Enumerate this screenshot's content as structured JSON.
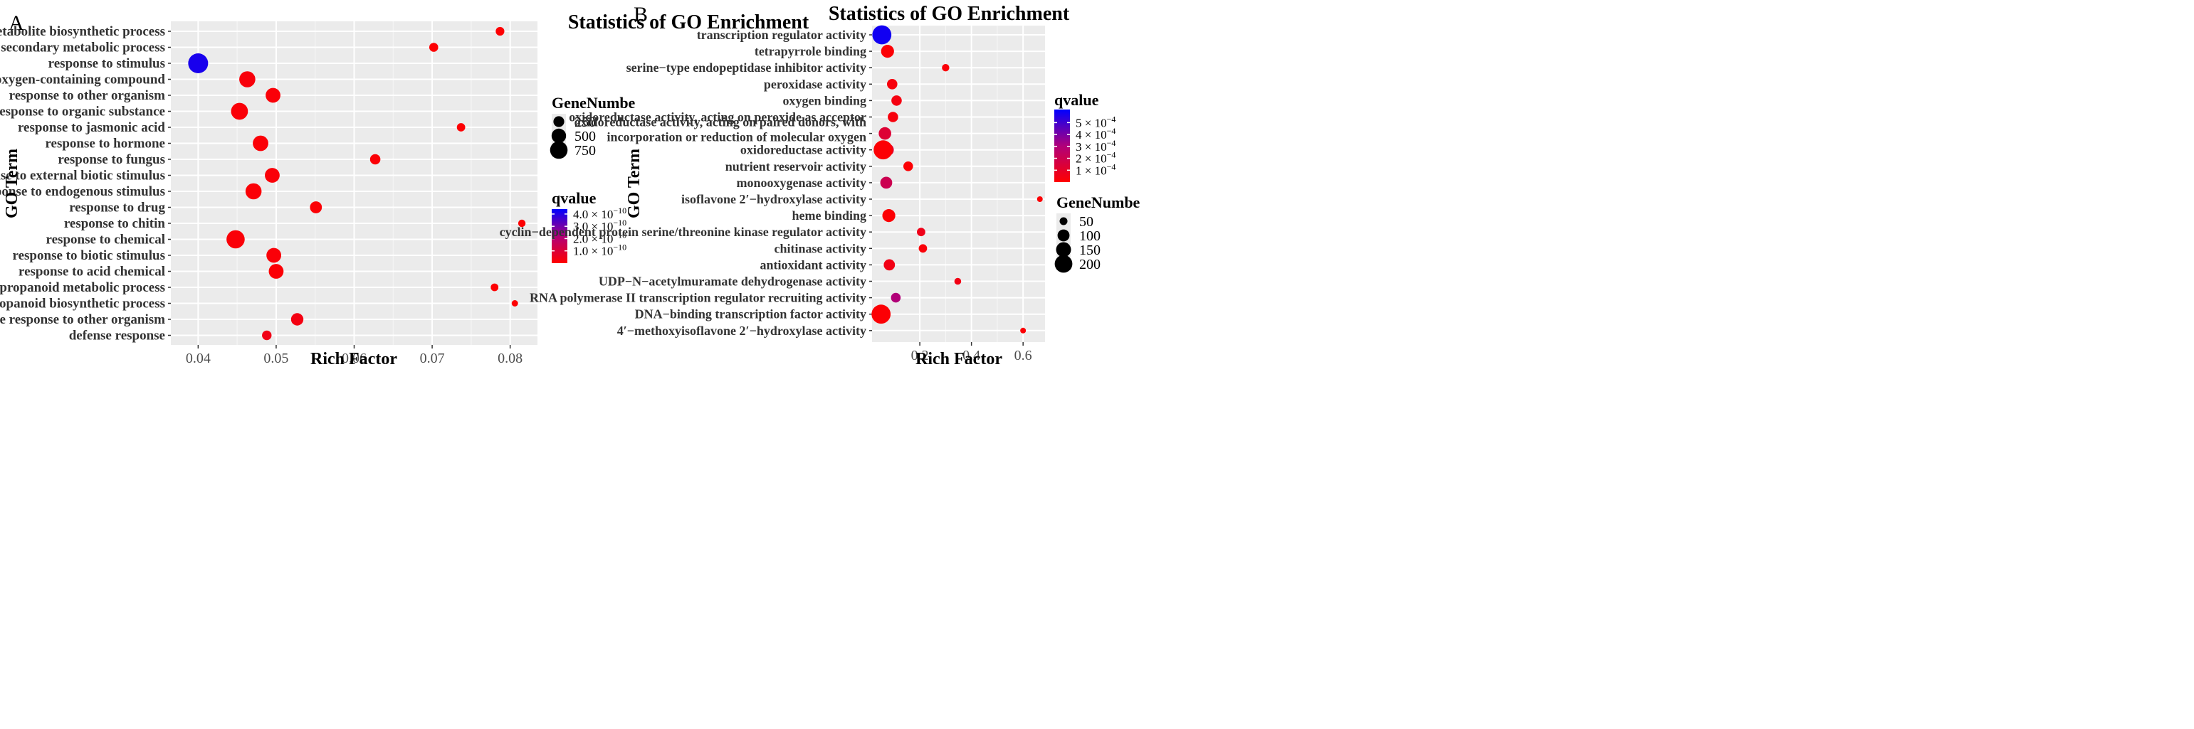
{
  "chart_data": [
    {
      "panel_label": "A",
      "type": "scatter",
      "title": "Statistics of GO Enrichment",
      "xlabel": "Rich Factor",
      "ylabel": "GO Term",
      "xlim": [
        0.0365,
        0.0835
      ],
      "xticks": [
        0.04,
        0.05,
        0.06,
        0.07,
        0.08
      ],
      "xtick_labels": [
        "0.04",
        "0.05",
        "0.06",
        "0.07",
        "0.08"
      ],
      "grid": true,
      "points": [
        {
          "term": "secondary metabolite biosynthetic process",
          "x": 0.0787,
          "size": 150,
          "q": 0.05
        },
        {
          "term": "secondary metabolic process",
          "x": 0.0702,
          "size": 160,
          "q": 0.05
        },
        {
          "term": "response to stimulus",
          "x": 0.04,
          "size": 1000,
          "q": 4.1
        },
        {
          "term": "response to oxygen-containing compound",
          "x": 0.0463,
          "size": 620,
          "q": 0.2
        },
        {
          "term": "response to other organism",
          "x": 0.0496,
          "size": 520,
          "q": 0.15
        },
        {
          "term": "response to organic substance",
          "x": 0.0453,
          "size": 700,
          "q": 0.15
        },
        {
          "term": "response to jasmonic acid",
          "x": 0.0737,
          "size": 140,
          "q": 0.05
        },
        {
          "term": "response to hormone",
          "x": 0.048,
          "size": 580,
          "q": 0.1
        },
        {
          "term": "response to fungus",
          "x": 0.0627,
          "size": 230,
          "q": 0.1
        },
        {
          "term": "response to external biotic stimulus",
          "x": 0.0495,
          "size": 520,
          "q": 0.15
        },
        {
          "term": "response to endogenous stimulus",
          "x": 0.0471,
          "size": 630,
          "q": 0.1
        },
        {
          "term": "response to drug",
          "x": 0.0551,
          "size": 320,
          "q": 0.1
        },
        {
          "term": "response to chitin",
          "x": 0.0815,
          "size": 100,
          "q": 0.05
        },
        {
          "term": "response to chemical",
          "x": 0.0448,
          "size": 820,
          "q": 0.15
        },
        {
          "term": "response to biotic stimulus",
          "x": 0.0497,
          "size": 520,
          "q": 0.15
        },
        {
          "term": "response to acid chemical",
          "x": 0.05,
          "size": 520,
          "q": 0.1
        },
        {
          "term": "phenylpropanoid metabolic process",
          "x": 0.078,
          "size": 110,
          "q": 0.05
        },
        {
          "term": "phenylpropanoid biosynthetic process",
          "x": 0.0806,
          "size": 70,
          "q": 0.05
        },
        {
          "term": "defense response to other organism",
          "x": 0.0527,
          "size": 350,
          "q": 0.3
        },
        {
          "term": "defense response",
          "x": 0.0488,
          "size": 190,
          "q": 0.4
        }
      ],
      "size_legend": {
        "title": "GeneNumbe",
        "values": [
          250,
          500,
          750
        ],
        "labels": [
          "250",
          "500",
          "750"
        ]
      },
      "color_legend": {
        "title": "qvalue",
        "max": 4.4,
        "ticks": [
          1.0,
          2.0,
          3.0,
          4.0
        ],
        "labels": [
          "1.0 × 10",
          "2.0 × 10",
          "3.0 × 10",
          "4.0 × 10"
        ],
        "exponent": "−10"
      },
      "colors": {
        "low": "#ff0000",
        "high": "#0000ff"
      }
    },
    {
      "panel_label": "B",
      "type": "scatter",
      "title": "Statistics of GO Enrichment",
      "xlabel": "Rich Factor",
      "ylabel": "GO Term",
      "xlim": [
        0.015,
        0.685
      ],
      "xticks": [
        0.2,
        0.4,
        0.6
      ],
      "xtick_labels": [
        "0.2",
        "0.4",
        "0.6"
      ],
      "grid": true,
      "points": [
        {
          "term": "transcription regulator activity",
          "x": 0.053,
          "size": 230,
          "q": 5.8
        },
        {
          "term": "tetrapyrrole binding",
          "x": 0.075,
          "size": 115,
          "q": 0.1
        },
        {
          "term": "serine-type endopeptidase inhibitor activity",
          "x": 0.3,
          "size": 45,
          "q": 0.2
        },
        {
          "term": "peroxidase activity",
          "x": 0.093,
          "size": 80,
          "q": 0.3
        },
        {
          "term": "oxygen binding",
          "x": 0.11,
          "size": 80,
          "q": 0.4
        },
        {
          "term": "oxidoreductase activity, acting on peroxide as acceptor",
          "x": 0.096,
          "size": 80,
          "q": 0.3
        },
        {
          "term": "oxidoreductase activity, acting on paired donors, with incorporation or reduction of molecular oxygen",
          "term_lines": [
            "oxidoreductase activity, acting on paired donors, with",
            "incorporation or reduction of molecular oxygen"
          ],
          "x": 0.065,
          "size": 110,
          "q": 1.3
        },
        {
          "term": "oxidoreductase activity",
          "x": 0.075,
          "size": 110,
          "q": 1.3
        },
        {
          "term": "oxidoreductase activity",
          "x": 0.058,
          "size": 230,
          "q": 0.1
        },
        {
          "term": "nutrient reservoir activity",
          "x": 0.155,
          "size": 70,
          "q": 0.1
        },
        {
          "term": "monooxygenase activity",
          "x": 0.07,
          "size": 100,
          "q": 2.0
        },
        {
          "term": "isoflavone 2'-hydroxylase activity",
          "x": 0.665,
          "size": 30,
          "q": 0.1
        },
        {
          "term": "heme binding",
          "x": 0.08,
          "size": 115,
          "q": 0.1
        },
        {
          "term": "cyclin-dependent protein serine/threonine kinase regulator activity",
          "x": 0.205,
          "size": 55,
          "q": 0.6
        },
        {
          "term": "chitinase activity",
          "x": 0.212,
          "size": 55,
          "q": 0.2
        },
        {
          "term": "antioxidant activity",
          "x": 0.082,
          "size": 90,
          "q": 0.5
        },
        {
          "term": "UDP-N-acetylmuramate dehydrogenase activity",
          "x": 0.347,
          "size": 40,
          "q": 0.5
        },
        {
          "term": "RNA polymerase II transcription regulator recruiting activity",
          "x": 0.107,
          "size": 70,
          "q": 3.0
        },
        {
          "term": "DNA-binding transcription factor activity",
          "x": 0.05,
          "size": 230,
          "q": 0.1
        },
        {
          "term": "4'-methoxyisoflavone 2'-hydroxylase activity",
          "x": 0.6,
          "size": 30,
          "q": 0.1
        }
      ],
      "y_categories": [
        {
          "label": "transcription regulator activity"
        },
        {
          "label": "tetrapyrrole binding"
        },
        {
          "label": "serine−type endopeptidase inhibitor activity"
        },
        {
          "label": "peroxidase activity"
        },
        {
          "label": "oxygen binding"
        },
        {
          "label": "oxidoreductase activity, acting on peroxide as acceptor"
        },
        {
          "label": "oxidoreductase activity, acting on paired donors, with\nincorporation or reduction of molecular oxygen"
        },
        {
          "label": "oxidoreductase activity"
        },
        {
          "label": "nutrient reservoir activity"
        },
        {
          "label": "monooxygenase activity"
        },
        {
          "label": "isoflavone 2′−hydroxylase activity"
        },
        {
          "label": "heme binding"
        },
        {
          "label": "cyclin−dependent protein serine/threonine kinase regulator activity"
        },
        {
          "label": "chitinase activity"
        },
        {
          "label": "antioxidant activity"
        },
        {
          "label": "UDP−N−acetylmuramate dehydrogenase activity"
        },
        {
          "label": "RNA polymerase II transcription regulator recruiting activity"
        },
        {
          "label": "DNA−binding transcription factor activity"
        },
        {
          "label": "4′−methoxyisoflavone 2′−hydroxylase activity"
        }
      ],
      "size_legend": {
        "title": "GeneNumbe",
        "values": [
          50,
          100,
          150,
          200
        ],
        "labels": [
          "50",
          "100",
          "150",
          "200"
        ]
      },
      "color_legend": {
        "title": "qvalue",
        "max": 6.1,
        "ticks": [
          1,
          2,
          3,
          4,
          5
        ],
        "labels": [
          "1 × 10",
          "2 × 10",
          "3 × 10",
          "4 × 10",
          "5 × 10"
        ],
        "exponent": "−4"
      },
      "colors": {
        "low": "#ff0000",
        "high": "#0000ff"
      }
    }
  ]
}
